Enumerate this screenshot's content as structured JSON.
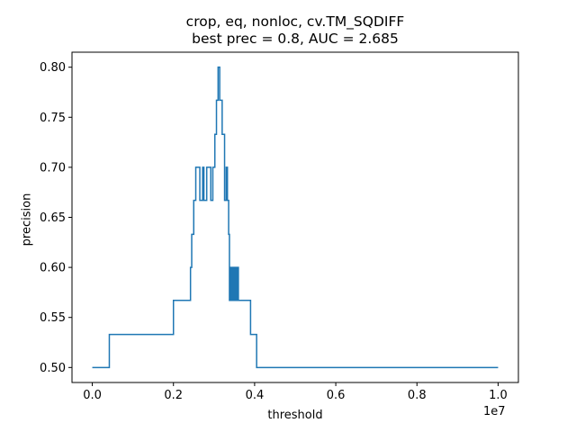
{
  "chart_data": {
    "type": "line",
    "title_lines": [
      "crop, eq, nonloc, cv.TM_SQDIFF",
      "best prec = 0.8, AUC = 2.685"
    ],
    "xlabel": "threshold",
    "ylabel": "precision",
    "x_offset_label": "1e7",
    "xlim": [
      -0.05,
      1.05
    ],
    "ylim": [
      0.485,
      0.815
    ],
    "x_ticks": [
      0.0,
      0.2,
      0.4,
      0.6,
      0.8,
      1.0
    ],
    "x_tick_labels": [
      "0.0",
      "0.2",
      "0.4",
      "0.6",
      "0.8",
      "1.0"
    ],
    "y_ticks": [
      0.5,
      0.55,
      0.6,
      0.65,
      0.7,
      0.75,
      0.8
    ],
    "y_tick_labels": [
      "0.50",
      "0.55",
      "0.60",
      "0.65",
      "0.70",
      "0.75",
      "0.80"
    ],
    "grid": false,
    "line_color": "#1f77b4",
    "series": [
      {
        "x": [
          0.0,
          0.042,
          0.042,
          0.2,
          0.2,
          0.242,
          0.242,
          0.245,
          0.245,
          0.25,
          0.25,
          0.255,
          0.255,
          0.265,
          0.265,
          0.272,
          0.272,
          0.275,
          0.275,
          0.282,
          0.282,
          0.292,
          0.292,
          0.297,
          0.297,
          0.302,
          0.302,
          0.306,
          0.306,
          0.31,
          0.31,
          0.314,
          0.314,
          0.32,
          0.32,
          0.326,
          0.326,
          0.33,
          0.33,
          0.333,
          0.333,
          0.336,
          0.336,
          0.338,
          0.338,
          0.341,
          0.341,
          0.344,
          0.344,
          0.346,
          0.346,
          0.349,
          0.349,
          0.352,
          0.352,
          0.354,
          0.354,
          0.357,
          0.357,
          0.36,
          0.36,
          0.39,
          0.39,
          0.405,
          0.405,
          1.0
        ],
        "y": [
          0.5,
          0.5,
          0.533,
          0.533,
          0.567,
          0.567,
          0.6,
          0.6,
          0.633,
          0.633,
          0.667,
          0.667,
          0.7,
          0.7,
          0.667,
          0.667,
          0.7,
          0.7,
          0.667,
          0.667,
          0.7,
          0.7,
          0.667,
          0.667,
          0.7,
          0.7,
          0.733,
          0.733,
          0.767,
          0.767,
          0.8,
          0.8,
          0.767,
          0.767,
          0.733,
          0.733,
          0.667,
          0.667,
          0.7,
          0.7,
          0.667,
          0.667,
          0.633,
          0.633,
          0.567,
          0.567,
          0.6,
          0.6,
          0.567,
          0.567,
          0.6,
          0.6,
          0.567,
          0.567,
          0.6,
          0.6,
          0.567,
          0.567,
          0.6,
          0.6,
          0.567,
          0.567,
          0.533,
          0.533,
          0.5,
          0.5
        ]
      }
    ]
  }
}
